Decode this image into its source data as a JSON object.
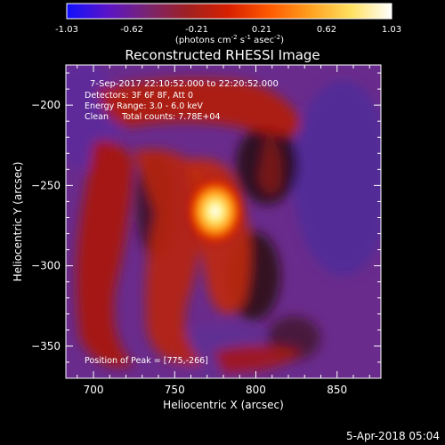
{
  "colorbar": {
    "ticks": [
      "-1.03",
      "-0.62",
      "-0.21",
      "0.21",
      "0.62",
      "1.03"
    ],
    "unit_prefix": "(photons cm",
    "unit_exp1": "-2",
    "unit_mid": " s",
    "unit_exp2": "-1",
    "unit_mid2": " asec",
    "unit_exp3": "-2",
    "unit_suffix": ")",
    "stops": [
      "#1010ff",
      "#5a14c8",
      "#7a2470",
      "#a02020",
      "#d82000",
      "#ff5a00",
      "#ffa020",
      "#ffe060",
      "#ffffff"
    ]
  },
  "title": "Reconstructed RHESSI Image",
  "annotations": {
    "time": "7-Sep-2017 22:10:52.000 to 22:20:52.000",
    "detectors": "Detectors: 3F 6F 8F, Att 0",
    "energy": "Energy Range: 3.0 - 6.0 keV",
    "clean": "Clean     Total counts: 7.78E+04",
    "peak": "Position of Peak = [775,-266]"
  },
  "axes": {
    "xlabel": "Heliocentric X (arcsec)",
    "ylabel": "Heliocentric Y (arcsec)",
    "xticks": [
      "700",
      "750",
      "800",
      "850"
    ],
    "yticks": [
      "-200",
      "-250",
      "-300",
      "-350"
    ]
  },
  "footer": {
    "timestamp": "5-Apr-2018 05:04"
  },
  "chart_data": {
    "type": "heatmap",
    "title": "Reconstructed RHESSI Image",
    "xlabel": "Heliocentric X (arcsec)",
    "ylabel": "Heliocentric Y (arcsec)",
    "xlim": [
      683,
      877
    ],
    "ylim": [
      -370,
      -175
    ],
    "color_range": [
      -1.03,
      1.03
    ],
    "peak": [
      775,
      -266
    ]
  }
}
